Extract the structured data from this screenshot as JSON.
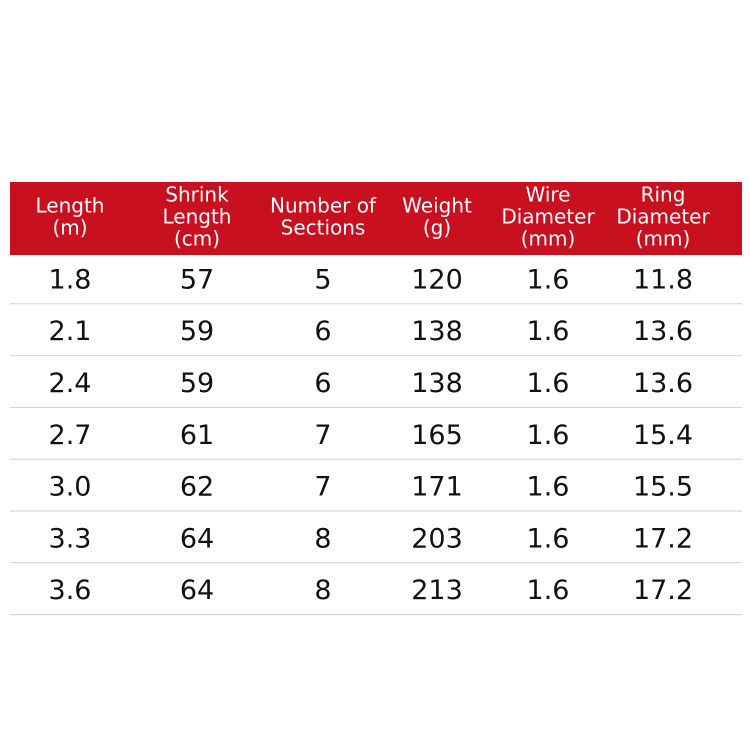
{
  "table": {
    "header": [
      [
        "Length",
        "(m)"
      ],
      [
        "Shrink",
        "Length",
        "(cm)"
      ],
      [
        "Number of",
        "Sections"
      ],
      [
        "Weight",
        "(g)"
      ],
      [
        "Wire",
        "Diameter",
        "(mm)"
      ],
      [
        "Ring",
        "Diameter",
        "(mm)"
      ]
    ],
    "rows": [
      [
        "1.8",
        "57",
        "5",
        "120",
        "1.6",
        "11.8"
      ],
      [
        "2.1",
        "59",
        "6",
        "138",
        "1.6",
        "13.6"
      ],
      [
        "2.4",
        "59",
        "6",
        "138",
        "1.6",
        "13.6"
      ],
      [
        "2.7",
        "61",
        "7",
        "165",
        "1.6",
        "15.4"
      ],
      [
        "3.0",
        "62",
        "7",
        "171",
        "1.6",
        "15.5"
      ],
      [
        "3.3",
        "64",
        "8",
        "203",
        "1.6",
        "17.2"
      ],
      [
        "3.6",
        "64",
        "8",
        "213",
        "1.6",
        "17.2"
      ]
    ]
  }
}
